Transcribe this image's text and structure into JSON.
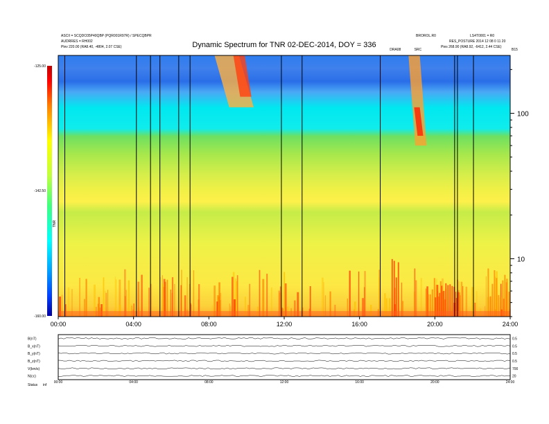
{
  "header": {
    "left_line1": "ASCII = SCQDO35P40QBP (PQR001R97R) / SPECQBPR",
    "left_line2": "AUDRRES = RH002",
    "left_line3": "Plev  220.00 (RA8.40, -4804, 2.07 CSE)",
    "right_line1": "BROROL.R0",
    "right_line2": "LS4T0001 = R0",
    "right_line3": "RES_POSTURE  2014 12 08 0 11 20",
    "right_line4": "Pies  268.90 (RA8.92, -6412, 2.44 CSE)"
  },
  "chart_data": {
    "type": "heatmap",
    "title": "Dynamic Spectrum for TNR 02-DEC-2014, DOY = 336",
    "xlabel": "",
    "ylabel": "",
    "x_ticks": [
      "00:00",
      "04:00",
      "08:00",
      "12:00",
      "16:00",
      "20:00",
      "24:00"
    ],
    "xlim": [
      0,
      24
    ],
    "y_scale": "log",
    "y_ticks": [
      "100",
      "10"
    ],
    "y_tick_values": [
      100,
      10
    ],
    "ylim": [
      4,
      250
    ],
    "colorbar": {
      "label": "TNR",
      "ticks": [
        "-125.00",
        "-142.50",
        "-160.00"
      ],
      "range": [
        -160,
        -125
      ],
      "colors": [
        "#c00000",
        "#ff0000",
        "#ff8000",
        "#ffff00",
        "#c0ff40",
        "#40ff80",
        "#00ffff",
        "#00a0ff",
        "#0040ff",
        "#0000a0"
      ]
    },
    "band_colors": [
      "#2e7df0",
      "#2a6ee8",
      "#34a0f0",
      "#00e8f0",
      "#30dcd0",
      "#7ce050",
      "#b8ec48",
      "#e4f24a",
      "#f4f248",
      "#f6f046",
      "#fdf04a",
      "#fde040",
      "#fbc030"
    ],
    "burst_colors": [
      "#ff3000",
      "#ff8000",
      "#ffc000"
    ],
    "vertical_lines_hours": [
      0.35,
      4.15,
      4.9,
      5.4,
      6.4,
      7.0,
      11.85,
      12.95,
      17.1,
      21.05,
      21.2,
      22.05
    ],
    "markers": [
      {
        "text": "DRA08",
        "hour": 17.9
      },
      {
        "text": "SRC",
        "hour": 19.1
      }
    ],
    "extra_label_right": "B15",
    "bursts": [
      {
        "start": 8.3,
        "end": 9.6,
        "top": 250,
        "bottom": 110,
        "color": "#ffb040"
      },
      {
        "start": 9.3,
        "end": 9.9,
        "top": 250,
        "bottom": 130,
        "color": "#ff4010"
      },
      {
        "start": 18.6,
        "end": 19.2,
        "top": 250,
        "bottom": 60,
        "color": "#ffa030"
      },
      {
        "start": 18.9,
        "end": 19.2,
        "top": 110,
        "bottom": 70,
        "color": "#ff2000"
      }
    ]
  },
  "lower_panel": {
    "rows": [
      {
        "label": "B(nT)",
        "right": "0.5"
      },
      {
        "label": "B_x(nT)",
        "right": "0.5"
      },
      {
        "label": "B_y(nT)",
        "right": "0.5"
      },
      {
        "label": "B_z(nT)",
        "right": "0.5"
      },
      {
        "label": "V(km/s)",
        "right": "700"
      },
      {
        "label": "N(cc)",
        "right": "20"
      }
    ],
    "time_ticks": [
      "00:00",
      "04:00",
      "08:00",
      "12:00",
      "16:00",
      "20:00",
      "24:00"
    ],
    "bottom_left_a": "Status",
    "bottom_left_b": "inf"
  }
}
